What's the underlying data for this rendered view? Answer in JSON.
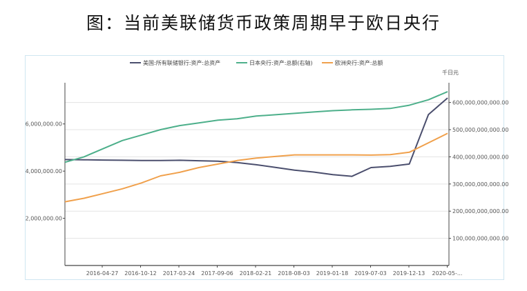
{
  "title": "图：当前美联储货币政策周期早于欧日央行",
  "chart_data": {
    "type": "line",
    "legend_position": "top",
    "grid": "horizontal",
    "right_axis_unit": "千日元",
    "x_tick_labels": [
      "2016-04-27",
      "2016-10-12",
      "2017-03-24",
      "2017-09-06",
      "2018-02-21",
      "2018-08-03",
      "2019-01-18",
      "2019-07-03",
      "2019-12-13",
      "2020-05-..."
    ],
    "y_left": {
      "ticks": [
        2000000,
        4000000,
        6000000
      ],
      "tick_labels": [
        "2,000,000.00",
        "4,000,000.00",
        "6,000,000.00"
      ],
      "lim": [
        0,
        7600000
      ]
    },
    "y_right": {
      "ticks": [
        100000000000,
        200000000000,
        300000000000,
        400000000000,
        500000000000,
        600000000000
      ],
      "tick_labels": [
        "100,000,000,000.00",
        "200,000,000,000.00",
        "300,000,000,000.00",
        "400,000,000,000.00",
        "500,000,000,000.00",
        "600,000,000,000.00"
      ],
      "lim": [
        0,
        660000000000
      ]
    },
    "x": [
      "2016-01",
      "2016-04",
      "2016-07",
      "2016-10",
      "2017-01",
      "2017-04",
      "2017-07",
      "2017-10",
      "2018-01",
      "2018-04",
      "2018-07",
      "2018-10",
      "2019-01",
      "2019-04",
      "2019-07",
      "2019-09",
      "2019-12",
      "2020-02",
      "2020-03",
      "2020-04",
      "2020-05"
    ],
    "series": [
      {
        "name": "美国:所有联储银行:资产:总资产",
        "color": "#4a4e6d",
        "axis": "left",
        "values": [
          4490000,
          4480000,
          4470000,
          4460000,
          4450000,
          4450000,
          4460000,
          4440000,
          4420000,
          4360000,
          4270000,
          4160000,
          4040000,
          3960000,
          3850000,
          3780000,
          4150000,
          4200000,
          4300000,
          6400000,
          7100000
        ]
      },
      {
        "name": "日本央行:资产:总额(右轴)",
        "color": "#4caf8a",
        "axis": "right",
        "values": [
          380000000000,
          400000000000,
          430000000000,
          460000000000,
          480000000000,
          500000000000,
          515000000000,
          525000000000,
          535000000000,
          540000000000,
          550000000000,
          555000000000,
          560000000000,
          565000000000,
          570000000000,
          573000000000,
          575000000000,
          578000000000,
          590000000000,
          610000000000,
          640000000000
        ]
      },
      {
        "name": "欧洲央行:资产:总额",
        "color": "#f0a04b",
        "axis": "left",
        "values": [
          2700000,
          2850000,
          3050000,
          3250000,
          3500000,
          3800000,
          3950000,
          4150000,
          4300000,
          4450000,
          4550000,
          4620000,
          4690000,
          4690000,
          4690000,
          4690000,
          4680000,
          4700000,
          4800000,
          5200000,
          5600000
        ]
      }
    ]
  }
}
